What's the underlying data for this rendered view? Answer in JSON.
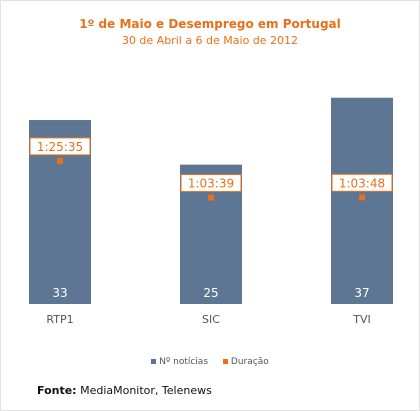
{
  "colors": {
    "bar": "#5d7694",
    "marker": "#e8701a",
    "title": "#e8701a"
  },
  "legend": {
    "series1": "Nº notícias",
    "series2": "Duração"
  },
  "source": {
    "label": "Fonte:",
    "text": "MediaMonitor, Telenews"
  },
  "chart_data": {
    "type": "bar",
    "title": "1º de Maio e Desemprego em Portugal",
    "subtitle": "30 de Abril a 6 de Maio de 2012",
    "categories": [
      "RTP1",
      "SIC",
      "TVI"
    ],
    "series": [
      {
        "name": "Nº notícias",
        "type": "bar",
        "values": [
          33,
          25,
          37
        ],
        "labels": [
          "33",
          "25",
          "37"
        ]
      },
      {
        "name": "Duração",
        "type": "marker",
        "values": [
          5135,
          3819,
          3828
        ],
        "labels": [
          "1:25:35",
          "1:03:39",
          "1:03:48"
        ]
      }
    ],
    "ylim": [
      0,
      40
    ],
    "y2lim": [
      0,
      8000
    ],
    "legend_position": "bottom",
    "grid": false
  }
}
